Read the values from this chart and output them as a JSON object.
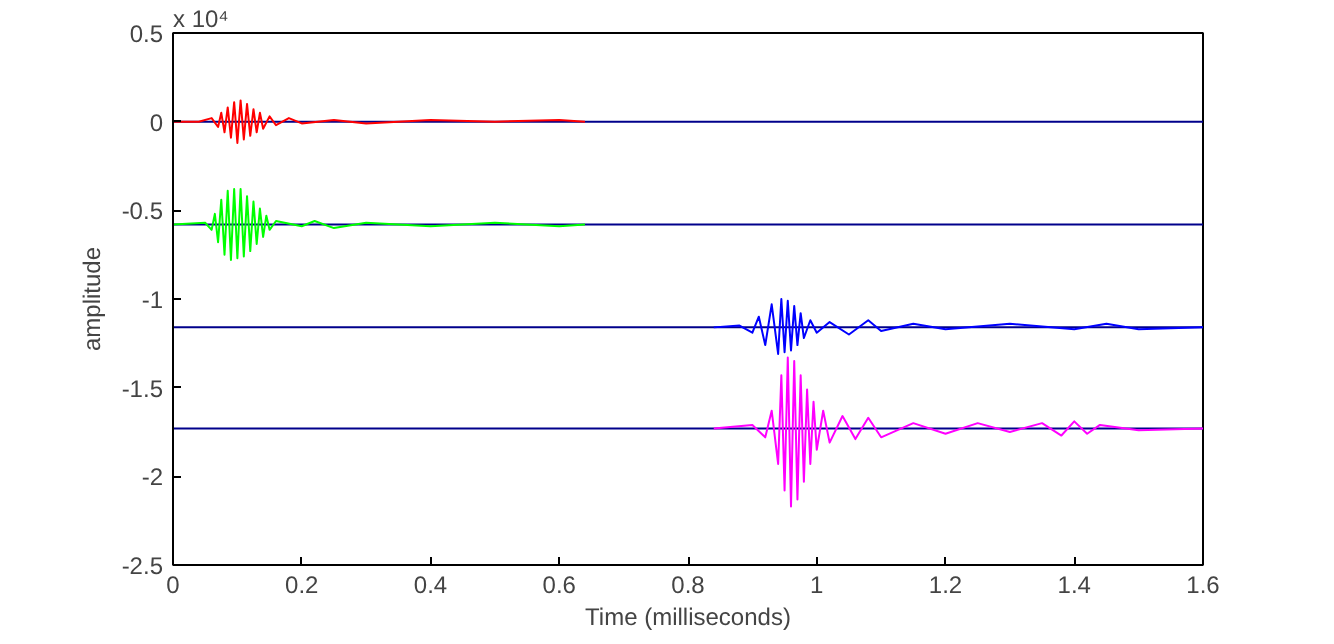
{
  "chart_data": {
    "type": "line",
    "xlabel": "Time (milliseconds)",
    "ylabel": "amplitude",
    "annotations": [
      "x 10⁴"
    ],
    "xlim": [
      0,
      1.6
    ],
    "xticks": [
      0,
      0.2,
      0.4,
      0.6,
      0.8,
      1,
      1.2,
      1.4,
      1.6
    ],
    "ylim": [
      -2.5,
      0.5
    ],
    "yticks": [
      -2.5,
      -2,
      -1.5,
      -1,
      -0.5,
      0,
      0.5
    ],
    "grid": false,
    "ref_lines": [
      {
        "axis": "y",
        "value": 0,
        "color": "#00008b"
      },
      {
        "axis": "y",
        "value": -0.58,
        "color": "#00008b"
      },
      {
        "axis": "y",
        "value": -1.16,
        "color": "#00008b"
      },
      {
        "axis": "y",
        "value": -1.73,
        "color": "#00008b"
      }
    ],
    "series": [
      {
        "color": "#ff0000",
        "x": [
          0,
          0.04,
          0.06,
          0.07,
          0.075,
          0.08,
          0.085,
          0.09,
          0.095,
          0.1,
          0.105,
          0.11,
          0.115,
          0.12,
          0.125,
          0.13,
          0.135,
          0.14,
          0.15,
          0.16,
          0.18,
          0.2,
          0.25,
          0.3,
          0.4,
          0.5,
          0.6,
          0.64
        ],
        "values": [
          0,
          0,
          0.02,
          -0.03,
          0.05,
          -0.06,
          0.08,
          -0.09,
          0.11,
          -0.12,
          0.12,
          -0.1,
          0.1,
          -0.08,
          0.07,
          -0.06,
          0.05,
          -0.04,
          0.03,
          -0.02,
          0.02,
          -0.01,
          0.01,
          -0.01,
          0.01,
          0,
          0.01,
          0
        ]
      },
      {
        "color": "#00ff00",
        "x": [
          0,
          0.05,
          0.06,
          0.065,
          0.07,
          0.075,
          0.08,
          0.085,
          0.09,
          0.095,
          0.1,
          0.105,
          0.11,
          0.115,
          0.12,
          0.125,
          0.13,
          0.135,
          0.14,
          0.145,
          0.15,
          0.16,
          0.2,
          0.22,
          0.25,
          0.3,
          0.4,
          0.5,
          0.6,
          0.64
        ],
        "values": [
          -0.58,
          -0.57,
          -0.61,
          -0.52,
          -0.68,
          -0.44,
          -0.75,
          -0.39,
          -0.78,
          -0.38,
          -0.77,
          -0.38,
          -0.76,
          -0.42,
          -0.73,
          -0.45,
          -0.69,
          -0.49,
          -0.65,
          -0.53,
          -0.61,
          -0.56,
          -0.59,
          -0.56,
          -0.6,
          -0.57,
          -0.59,
          -0.57,
          -0.59,
          -0.58
        ]
      },
      {
        "color": "#0000ff",
        "x": [
          0.84,
          0.88,
          0.9,
          0.91,
          0.92,
          0.93,
          0.94,
          0.945,
          0.95,
          0.955,
          0.96,
          0.965,
          0.97,
          0.975,
          0.98,
          0.99,
          1.0,
          1.02,
          1.05,
          1.08,
          1.1,
          1.15,
          1.2,
          1.3,
          1.4,
          1.45,
          1.5,
          1.6
        ],
        "values": [
          -1.16,
          -1.15,
          -1.19,
          -1.1,
          -1.26,
          -1.03,
          -1.31,
          -1.0,
          -1.3,
          -1.01,
          -1.29,
          -1.04,
          -1.26,
          -1.08,
          -1.22,
          -1.12,
          -1.19,
          -1.13,
          -1.2,
          -1.12,
          -1.18,
          -1.14,
          -1.17,
          -1.14,
          -1.17,
          -1.14,
          -1.17,
          -1.16
        ]
      },
      {
        "color": "#ff00ff",
        "x": [
          0.84,
          0.9,
          0.92,
          0.93,
          0.94,
          0.945,
          0.95,
          0.955,
          0.96,
          0.965,
          0.97,
          0.975,
          0.98,
          0.985,
          0.99,
          0.995,
          1.0,
          1.01,
          1.02,
          1.04,
          1.06,
          1.08,
          1.1,
          1.15,
          1.2,
          1.25,
          1.3,
          1.35,
          1.38,
          1.4,
          1.42,
          1.44,
          1.5,
          1.6
        ],
        "values": [
          -1.73,
          -1.71,
          -1.78,
          -1.63,
          -1.93,
          -1.43,
          -2.08,
          -1.33,
          -2.17,
          -1.35,
          -2.13,
          -1.43,
          -2.03,
          -1.51,
          -1.93,
          -1.58,
          -1.85,
          -1.63,
          -1.81,
          -1.66,
          -1.79,
          -1.67,
          -1.78,
          -1.7,
          -1.76,
          -1.7,
          -1.75,
          -1.7,
          -1.77,
          -1.69,
          -1.76,
          -1.71,
          -1.74,
          -1.73
        ]
      }
    ]
  }
}
